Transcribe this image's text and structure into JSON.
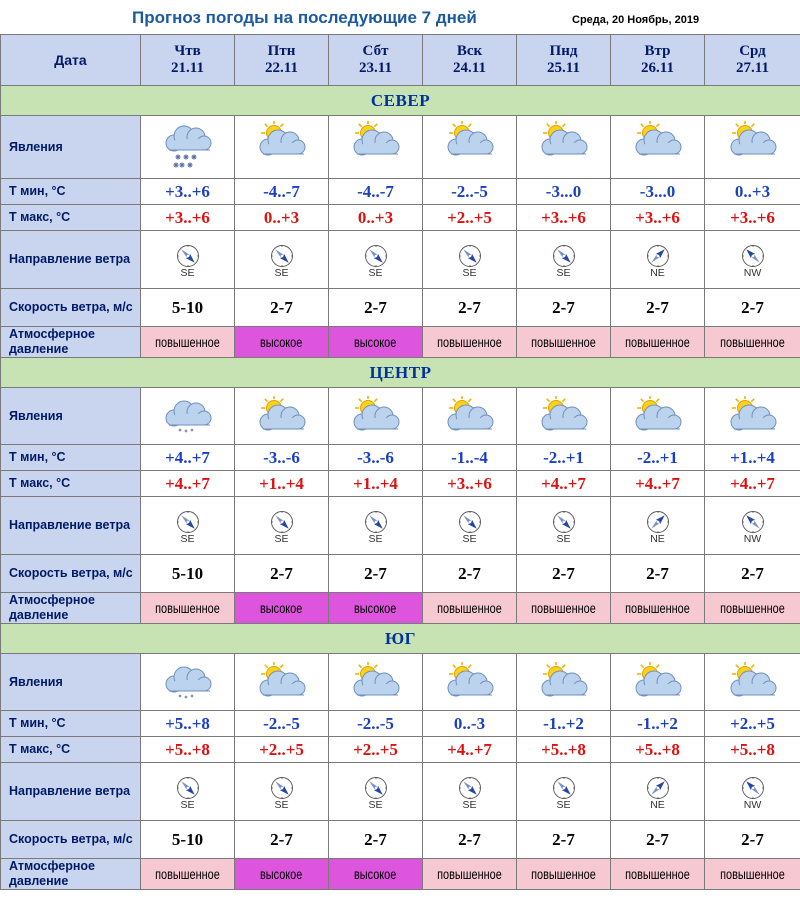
{
  "title": "Прогноз погоды на последующие 7 дней",
  "date": "Среда, 20 Ноябрь, 2019",
  "header_label": "Дата",
  "days": [
    {
      "name": "Чтв",
      "date": "21.11"
    },
    {
      "name": "Птн",
      "date": "22.11"
    },
    {
      "name": "Сбт",
      "date": "23.11"
    },
    {
      "name": "Вск",
      "date": "24.11"
    },
    {
      "name": "Пнд",
      "date": "25.11"
    },
    {
      "name": "Втр",
      "date": "26.11"
    },
    {
      "name": "Срд",
      "date": "27.11"
    }
  ],
  "row_labels": {
    "phenomena": "Явления",
    "tmin": "Т мин, °С",
    "tmax": "Т макс, °С",
    "wind_dir": "Направление ветра",
    "wind_speed": "Скорость ветра, м/с",
    "pressure": "Атмосферное давление"
  },
  "icon_names": [
    "snow-cloud-icon",
    "sun-cloud-icon"
  ],
  "colors": {
    "header_bg": "#c9d4ef",
    "region_bg": "#c7e3b3",
    "high_pressure": "#dd55dd",
    "raised_pressure": "#f6c8d2",
    "tmin": "#1a3fc4",
    "tmax": "#e01010"
  },
  "regions": [
    {
      "name": "СЕВЕР",
      "icons": [
        "snow",
        "sun",
        "sun",
        "sun",
        "sun",
        "sun",
        "sun"
      ],
      "tmin": [
        "+3..+6",
        "-4..-7",
        "-4..-7",
        "-2..-5",
        "-3...0",
        "-3...0",
        "0..+3"
      ],
      "tmax": [
        "+3..+6",
        "0..+3",
        "0..+3",
        "+2..+5",
        "+3..+6",
        "+3..+6",
        "+3..+6"
      ],
      "wind_dir": [
        "SE",
        "SE",
        "SE",
        "SE",
        "SE",
        "NE",
        "NW"
      ],
      "wind_speed": [
        "5-10",
        "2-7",
        "2-7",
        "2-7",
        "2-7",
        "2-7",
        "2-7"
      ],
      "pressure": [
        "повышенное",
        "высокое",
        "высокое",
        "повышенное",
        "повышенное",
        "повышенное",
        "повышенное"
      ]
    },
    {
      "name": "ЦЕНТР",
      "icons": [
        "snow",
        "sun",
        "sun",
        "sun",
        "sun",
        "sun",
        "sun"
      ],
      "tmin": [
        "+4..+7",
        "-3..-6",
        "-3..-6",
        "-1..-4",
        "-2..+1",
        "-2..+1",
        "+1..+4"
      ],
      "tmax": [
        "+4..+7",
        "+1..+4",
        "+1..+4",
        "+3..+6",
        "+4..+7",
        "+4..+7",
        "+4..+7"
      ],
      "wind_dir": [
        "SE",
        "SE",
        "SE",
        "SE",
        "SE",
        "NE",
        "NW"
      ],
      "wind_speed": [
        "5-10",
        "2-7",
        "2-7",
        "2-7",
        "2-7",
        "2-7",
        "2-7"
      ],
      "pressure": [
        "повышенное",
        "высокое",
        "высокое",
        "повышенное",
        "повышенное",
        "повышенное",
        "повышенное"
      ]
    },
    {
      "name": "ЮГ",
      "icons": [
        "snow",
        "sun",
        "sun",
        "sun",
        "sun",
        "sun",
        "sun"
      ],
      "tmin": [
        "+5..+8",
        "-2..-5",
        "-2..-5",
        "0..-3",
        "-1..+2",
        "-1..+2",
        "+2..+5"
      ],
      "tmax": [
        "+5..+8",
        "+2..+5",
        "+2..+5",
        "+4..+7",
        "+5..+8",
        "+5..+8",
        "+5..+8"
      ],
      "wind_dir": [
        "SE",
        "SE",
        "SE",
        "SE",
        "SE",
        "NE",
        "NW"
      ],
      "wind_speed": [
        "5-10",
        "2-7",
        "2-7",
        "2-7",
        "2-7",
        "2-7",
        "2-7"
      ],
      "pressure": [
        "повышенное",
        "высокое",
        "высокое",
        "повышенное",
        "повышенное",
        "повышенное",
        "повышенное"
      ]
    }
  ]
}
